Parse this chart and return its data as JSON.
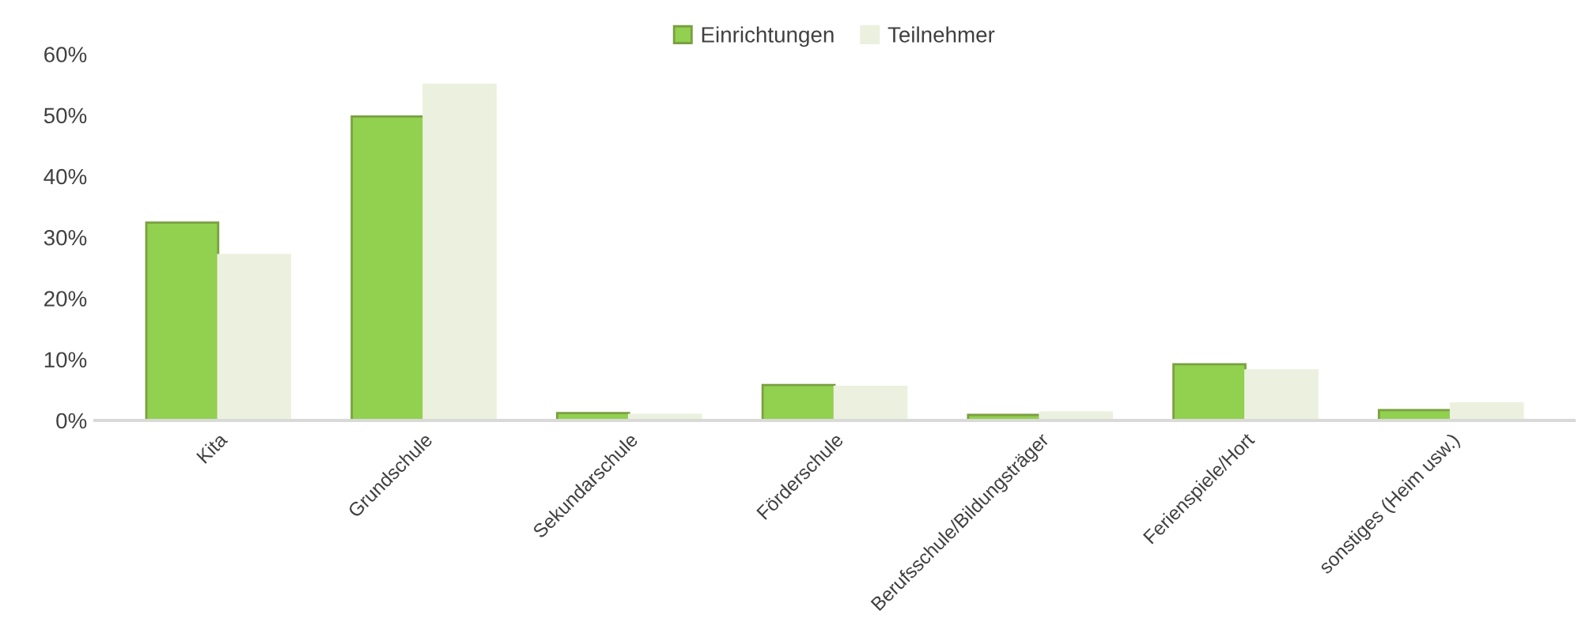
{
  "chart_data": {
    "type": "bar",
    "categories": [
      "Kita",
      "Grundschule",
      "Sekundarschule",
      "Förderschule",
      "Berufsschule/Bildungsträger",
      "Ferienspiele/Hort",
      "sonstiges (Heim usw.)"
    ],
    "series": [
      {
        "name": "Einrichtungen",
        "color": "#92d050",
        "values": [
          32.4,
          49.8,
          1.2,
          5.8,
          0.9,
          9.2,
          1.7
        ]
      },
      {
        "name": "Teilnehmer",
        "color": "#ebf1de",
        "values": [
          27.1,
          55.0,
          0.9,
          5.5,
          1.3,
          8.2,
          2.8
        ]
      }
    ],
    "ylim": [
      0,
      60
    ],
    "yticks": [
      {
        "value": 0,
        "label": "0%"
      },
      {
        "value": 10,
        "label": "10%"
      },
      {
        "value": 20,
        "label": "20%"
      },
      {
        "value": 30,
        "label": "30%"
      },
      {
        "value": 40,
        "label": "40%"
      },
      {
        "value": 50,
        "label": "50%"
      },
      {
        "value": 60,
        "label": "60%"
      }
    ],
    "legend": "top",
    "grid": false
  }
}
